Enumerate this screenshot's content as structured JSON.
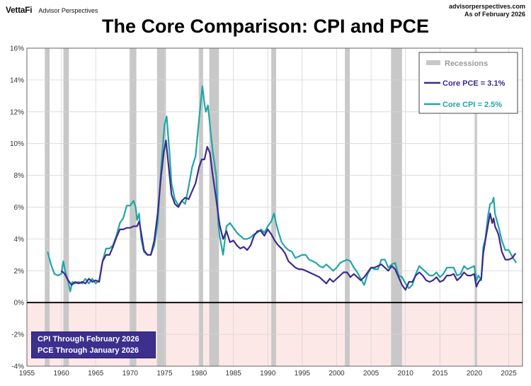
{
  "header": {
    "brand": "VettaFi",
    "brand_sub": "Advisor Perspectives",
    "source_line1": "advisorperspectives.com",
    "source_line2": "As of February 2026"
  },
  "chart_data": {
    "type": "line",
    "title": "The Core Comparison: CPI and PCE",
    "xlim": [
      1955,
      2027
    ],
    "ylim": [
      -4,
      16
    ],
    "y_ticks": [
      "16%",
      "14%",
      "12%",
      "10%",
      "8%",
      "6%",
      "4%",
      "2%",
      "0%",
      "-2%",
      "-4%"
    ],
    "x_ticks": [
      "1955",
      "1960",
      "1965",
      "1970",
      "1975",
      "1980",
      "1985",
      "1990",
      "1995",
      "2000",
      "2005",
      "2010",
      "2015",
      "2020",
      "2025"
    ],
    "grid": true,
    "legend_position": "top-right",
    "legend": {
      "recessions": "Recessions",
      "pce": "Core PCE = 3.1%",
      "cpi": "Core CPI =  2.5%"
    },
    "recessions": [
      [
        1957.6,
        1958.3
      ],
      [
        1960.3,
        1961.1
      ],
      [
        1969.9,
        1970.9
      ],
      [
        1973.9,
        1975.2
      ],
      [
        1980.0,
        1980.6
      ],
      [
        1981.5,
        1982.9
      ],
      [
        1990.5,
        1991.2
      ],
      [
        2001.2,
        2001.9
      ],
      [
        2007.9,
        2009.5
      ],
      [
        2020.1,
        2020.4
      ]
    ],
    "series": [
      {
        "name": "Core CPI",
        "color": "#21a6a6",
        "points": [
          [
            1958.0,
            3.2
          ],
          [
            1958.5,
            2.4
          ],
          [
            1959.0,
            1.8
          ],
          [
            1959.5,
            1.7
          ],
          [
            1960.0,
            1.8
          ],
          [
            1960.3,
            2.6
          ],
          [
            1960.6,
            1.9
          ],
          [
            1961.0,
            1.3
          ],
          [
            1961.3,
            0.7
          ],
          [
            1961.6,
            1.3
          ],
          [
            1962.0,
            1.2
          ],
          [
            1962.5,
            1.3
          ],
          [
            1963.0,
            1.2
          ],
          [
            1963.5,
            1.5
          ],
          [
            1964.0,
            1.2
          ],
          [
            1964.5,
            1.5
          ],
          [
            1965.0,
            1.2
          ],
          [
            1965.5,
            1.4
          ],
          [
            1966.0,
            2.6
          ],
          [
            1966.5,
            3.4
          ],
          [
            1967.0,
            3.4
          ],
          [
            1967.5,
            3.6
          ],
          [
            1968.0,
            4.2
          ],
          [
            1968.5,
            5.0
          ],
          [
            1969.0,
            5.3
          ],
          [
            1969.5,
            6.1
          ],
          [
            1970.0,
            6.1
          ],
          [
            1970.5,
            6.4
          ],
          [
            1970.8,
            6.0
          ],
          [
            1971.0,
            5.2
          ],
          [
            1971.3,
            5.6
          ],
          [
            1971.6,
            4.0
          ],
          [
            1972.0,
            3.2
          ],
          [
            1972.5,
            3.0
          ],
          [
            1973.0,
            3.0
          ],
          [
            1973.5,
            3.6
          ],
          [
            1974.0,
            5.0
          ],
          [
            1974.5,
            8.5
          ],
          [
            1975.0,
            11.2
          ],
          [
            1975.3,
            11.7
          ],
          [
            1975.7,
            9.5
          ],
          [
            1976.0,
            7.5
          ],
          [
            1976.5,
            6.5
          ],
          [
            1977.0,
            6.1
          ],
          [
            1977.5,
            6.4
          ],
          [
            1978.0,
            6.2
          ],
          [
            1978.5,
            7.3
          ],
          [
            1979.0,
            8.5
          ],
          [
            1979.5,
            9.2
          ],
          [
            1980.0,
            11.5
          ],
          [
            1980.5,
            13.6
          ],
          [
            1980.8,
            12.5
          ],
          [
            1981.0,
            12.0
          ],
          [
            1981.3,
            12.4
          ],
          [
            1981.7,
            10.7
          ],
          [
            1982.0,
            9.5
          ],
          [
            1982.5,
            8.0
          ],
          [
            1982.8,
            5.0
          ],
          [
            1983.0,
            4.2
          ],
          [
            1983.5,
            3.0
          ],
          [
            1984.0,
            4.8
          ],
          [
            1984.5,
            5.0
          ],
          [
            1985.0,
            4.7
          ],
          [
            1985.5,
            4.4
          ],
          [
            1986.0,
            4.2
          ],
          [
            1986.5,
            4.0
          ],
          [
            1987.0,
            4.0
          ],
          [
            1987.5,
            4.1
          ],
          [
            1988.0,
            4.3
          ],
          [
            1988.5,
            4.4
          ],
          [
            1989.0,
            4.6
          ],
          [
            1989.5,
            4.4
          ],
          [
            1990.0,
            4.8
          ],
          [
            1990.5,
            5.1
          ],
          [
            1990.9,
            5.6
          ],
          [
            1991.2,
            5.0
          ],
          [
            1991.5,
            4.5
          ],
          [
            1992.0,
            3.8
          ],
          [
            1992.5,
            3.5
          ],
          [
            1993.0,
            3.3
          ],
          [
            1993.5,
            3.2
          ],
          [
            1994.0,
            2.8
          ],
          [
            1994.5,
            2.9
          ],
          [
            1995.0,
            3.0
          ],
          [
            1995.5,
            3.0
          ],
          [
            1996.0,
            2.7
          ],
          [
            1996.5,
            2.6
          ],
          [
            1997.0,
            2.5
          ],
          [
            1997.5,
            2.3
          ],
          [
            1998.0,
            2.2
          ],
          [
            1998.5,
            2.4
          ],
          [
            1999.0,
            2.2
          ],
          [
            1999.5,
            2.0
          ],
          [
            2000.0,
            2.2
          ],
          [
            2000.5,
            2.5
          ],
          [
            2001.0,
            2.6
          ],
          [
            2001.5,
            2.7
          ],
          [
            2002.0,
            2.6
          ],
          [
            2002.5,
            2.2
          ],
          [
            2003.0,
            1.9
          ],
          [
            2003.5,
            1.5
          ],
          [
            2004.0,
            1.1
          ],
          [
            2004.5,
            1.8
          ],
          [
            2005.0,
            2.2
          ],
          [
            2005.5,
            2.1
          ],
          [
            2006.0,
            2.1
          ],
          [
            2006.5,
            2.7
          ],
          [
            2007.0,
            2.7
          ],
          [
            2007.5,
            2.2
          ],
          [
            2008.0,
            2.4
          ],
          [
            2008.5,
            2.5
          ],
          [
            2009.0,
            1.7
          ],
          [
            2009.5,
            1.6
          ],
          [
            2010.0,
            1.2
          ],
          [
            2010.5,
            0.9
          ],
          [
            2011.0,
            1.1
          ],
          [
            2011.5,
            1.8
          ],
          [
            2012.0,
            2.3
          ],
          [
            2012.5,
            2.1
          ],
          [
            2013.0,
            1.9
          ],
          [
            2013.5,
            1.7
          ],
          [
            2014.0,
            1.7
          ],
          [
            2014.5,
            1.9
          ],
          [
            2015.0,
            1.6
          ],
          [
            2015.5,
            1.8
          ],
          [
            2016.0,
            2.2
          ],
          [
            2016.5,
            2.2
          ],
          [
            2017.0,
            2.2
          ],
          [
            2017.5,
            1.7
          ],
          [
            2018.0,
            1.8
          ],
          [
            2018.5,
            2.3
          ],
          [
            2019.0,
            2.1
          ],
          [
            2019.5,
            2.2
          ],
          [
            2020.0,
            2.3
          ],
          [
            2020.3,
            1.4
          ],
          [
            2020.6,
            1.7
          ],
          [
            2021.0,
            1.4
          ],
          [
            2021.3,
            3.5
          ],
          [
            2021.6,
            4.0
          ],
          [
            2022.0,
            5.5
          ],
          [
            2022.3,
            6.2
          ],
          [
            2022.6,
            6.3
          ],
          [
            2022.8,
            6.6
          ],
          [
            2023.0,
            5.6
          ],
          [
            2023.5,
            4.8
          ],
          [
            2024.0,
            3.9
          ],
          [
            2024.5,
            3.3
          ],
          [
            2025.0,
            3.3
          ],
          [
            2025.5,
            2.9
          ],
          [
            2026.1,
            2.5
          ]
        ]
      },
      {
        "name": "Core PCE",
        "color": "#3e2a8c",
        "points": [
          [
            1960.0,
            2.0
          ],
          [
            1960.5,
            1.8
          ],
          [
            1961.0,
            1.4
          ],
          [
            1961.5,
            1.1
          ],
          [
            1962.0,
            1.3
          ],
          [
            1962.5,
            1.2
          ],
          [
            1963.0,
            1.3
          ],
          [
            1963.5,
            1.2
          ],
          [
            1964.0,
            1.5
          ],
          [
            1964.5,
            1.3
          ],
          [
            1965.0,
            1.4
          ],
          [
            1965.5,
            1.3
          ],
          [
            1966.0,
            2.6
          ],
          [
            1966.5,
            3.0
          ],
          [
            1967.0,
            3.0
          ],
          [
            1967.5,
            3.5
          ],
          [
            1968.0,
            4.1
          ],
          [
            1968.5,
            4.6
          ],
          [
            1969.0,
            4.6
          ],
          [
            1969.5,
            4.7
          ],
          [
            1970.0,
            4.7
          ],
          [
            1970.5,
            4.8
          ],
          [
            1971.0,
            4.8
          ],
          [
            1971.3,
            5.1
          ],
          [
            1971.6,
            4.4
          ],
          [
            1972.0,
            3.3
          ],
          [
            1972.5,
            3.0
          ],
          [
            1973.0,
            3.0
          ],
          [
            1973.5,
            3.9
          ],
          [
            1974.0,
            5.6
          ],
          [
            1974.5,
            8.0
          ],
          [
            1974.9,
            9.5
          ],
          [
            1975.2,
            10.2
          ],
          [
            1975.6,
            8.5
          ],
          [
            1976.0,
            6.8
          ],
          [
            1976.5,
            6.2
          ],
          [
            1977.0,
            6.0
          ],
          [
            1977.5,
            6.4
          ],
          [
            1978.0,
            6.6
          ],
          [
            1978.5,
            6.5
          ],
          [
            1979.0,
            7.0
          ],
          [
            1979.5,
            7.5
          ],
          [
            1980.0,
            8.5
          ],
          [
            1980.4,
            9.0
          ],
          [
            1980.8,
            9.0
          ],
          [
            1981.2,
            9.8
          ],
          [
            1981.6,
            9.4
          ],
          [
            1982.0,
            8.0
          ],
          [
            1982.5,
            6.5
          ],
          [
            1983.0,
            4.9
          ],
          [
            1983.5,
            4.0
          ],
          [
            1984.0,
            4.5
          ],
          [
            1984.5,
            3.8
          ],
          [
            1985.0,
            3.9
          ],
          [
            1985.5,
            3.6
          ],
          [
            1986.0,
            3.4
          ],
          [
            1986.5,
            3.5
          ],
          [
            1987.0,
            3.3
          ],
          [
            1987.5,
            3.6
          ],
          [
            1988.0,
            4.2
          ],
          [
            1988.5,
            4.5
          ],
          [
            1989.0,
            4.5
          ],
          [
            1989.5,
            4.2
          ],
          [
            1990.0,
            4.6
          ],
          [
            1990.5,
            4.3
          ],
          [
            1991.0,
            3.9
          ],
          [
            1991.5,
            3.6
          ],
          [
            1992.0,
            3.4
          ],
          [
            1992.5,
            3.1
          ],
          [
            1993.0,
            2.6
          ],
          [
            1993.5,
            2.4
          ],
          [
            1994.0,
            2.2
          ],
          [
            1994.5,
            2.1
          ],
          [
            1995.0,
            2.1
          ],
          [
            1995.5,
            2.0
          ],
          [
            1996.0,
            1.9
          ],
          [
            1996.5,
            1.8
          ],
          [
            1997.0,
            1.7
          ],
          [
            1997.5,
            1.6
          ],
          [
            1998.0,
            1.4
          ],
          [
            1998.5,
            1.2
          ],
          [
            1999.0,
            1.5
          ],
          [
            1999.5,
            1.3
          ],
          [
            2000.0,
            1.5
          ],
          [
            2000.5,
            1.7
          ],
          [
            2001.0,
            1.9
          ],
          [
            2001.5,
            1.9
          ],
          [
            2002.0,
            1.6
          ],
          [
            2002.5,
            1.8
          ],
          [
            2003.0,
            1.6
          ],
          [
            2003.5,
            1.4
          ],
          [
            2004.0,
            1.6
          ],
          [
            2004.5,
            1.9
          ],
          [
            2005.0,
            2.2
          ],
          [
            2005.5,
            2.2
          ],
          [
            2006.0,
            2.3
          ],
          [
            2006.5,
            2.4
          ],
          [
            2007.0,
            2.2
          ],
          [
            2007.5,
            2.0
          ],
          [
            2008.0,
            2.3
          ],
          [
            2008.5,
            2.1
          ],
          [
            2009.0,
            1.6
          ],
          [
            2009.5,
            1.1
          ],
          [
            2010.0,
            0.8
          ],
          [
            2010.5,
            1.3
          ],
          [
            2011.0,
            1.3
          ],
          [
            2011.5,
            1.7
          ],
          [
            2012.0,
            1.9
          ],
          [
            2012.5,
            1.7
          ],
          [
            2013.0,
            1.4
          ],
          [
            2013.5,
            1.3
          ],
          [
            2014.0,
            1.4
          ],
          [
            2014.5,
            1.6
          ],
          [
            2015.0,
            1.3
          ],
          [
            2015.5,
            1.4
          ],
          [
            2016.0,
            1.7
          ],
          [
            2016.5,
            1.7
          ],
          [
            2017.0,
            1.8
          ],
          [
            2017.5,
            1.4
          ],
          [
            2018.0,
            1.6
          ],
          [
            2018.5,
            1.9
          ],
          [
            2019.0,
            1.7
          ],
          [
            2019.5,
            1.7
          ],
          [
            2020.0,
            1.8
          ],
          [
            2020.3,
            1.0
          ],
          [
            2020.6,
            1.3
          ],
          [
            2021.0,
            1.5
          ],
          [
            2021.3,
            3.1
          ],
          [
            2021.6,
            3.9
          ],
          [
            2022.0,
            4.9
          ],
          [
            2022.3,
            5.6
          ],
          [
            2022.6,
            5.0
          ],
          [
            2022.8,
            5.3
          ],
          [
            2023.0,
            4.8
          ],
          [
            2023.5,
            4.3
          ],
          [
            2024.0,
            3.2
          ],
          [
            2024.5,
            2.7
          ],
          [
            2025.0,
            2.7
          ],
          [
            2025.5,
            2.8
          ],
          [
            2026.0,
            3.1
          ]
        ]
      }
    ],
    "note": {
      "line1": "CPI Through February 2026",
      "line2": "PCE Through January 2026"
    }
  }
}
